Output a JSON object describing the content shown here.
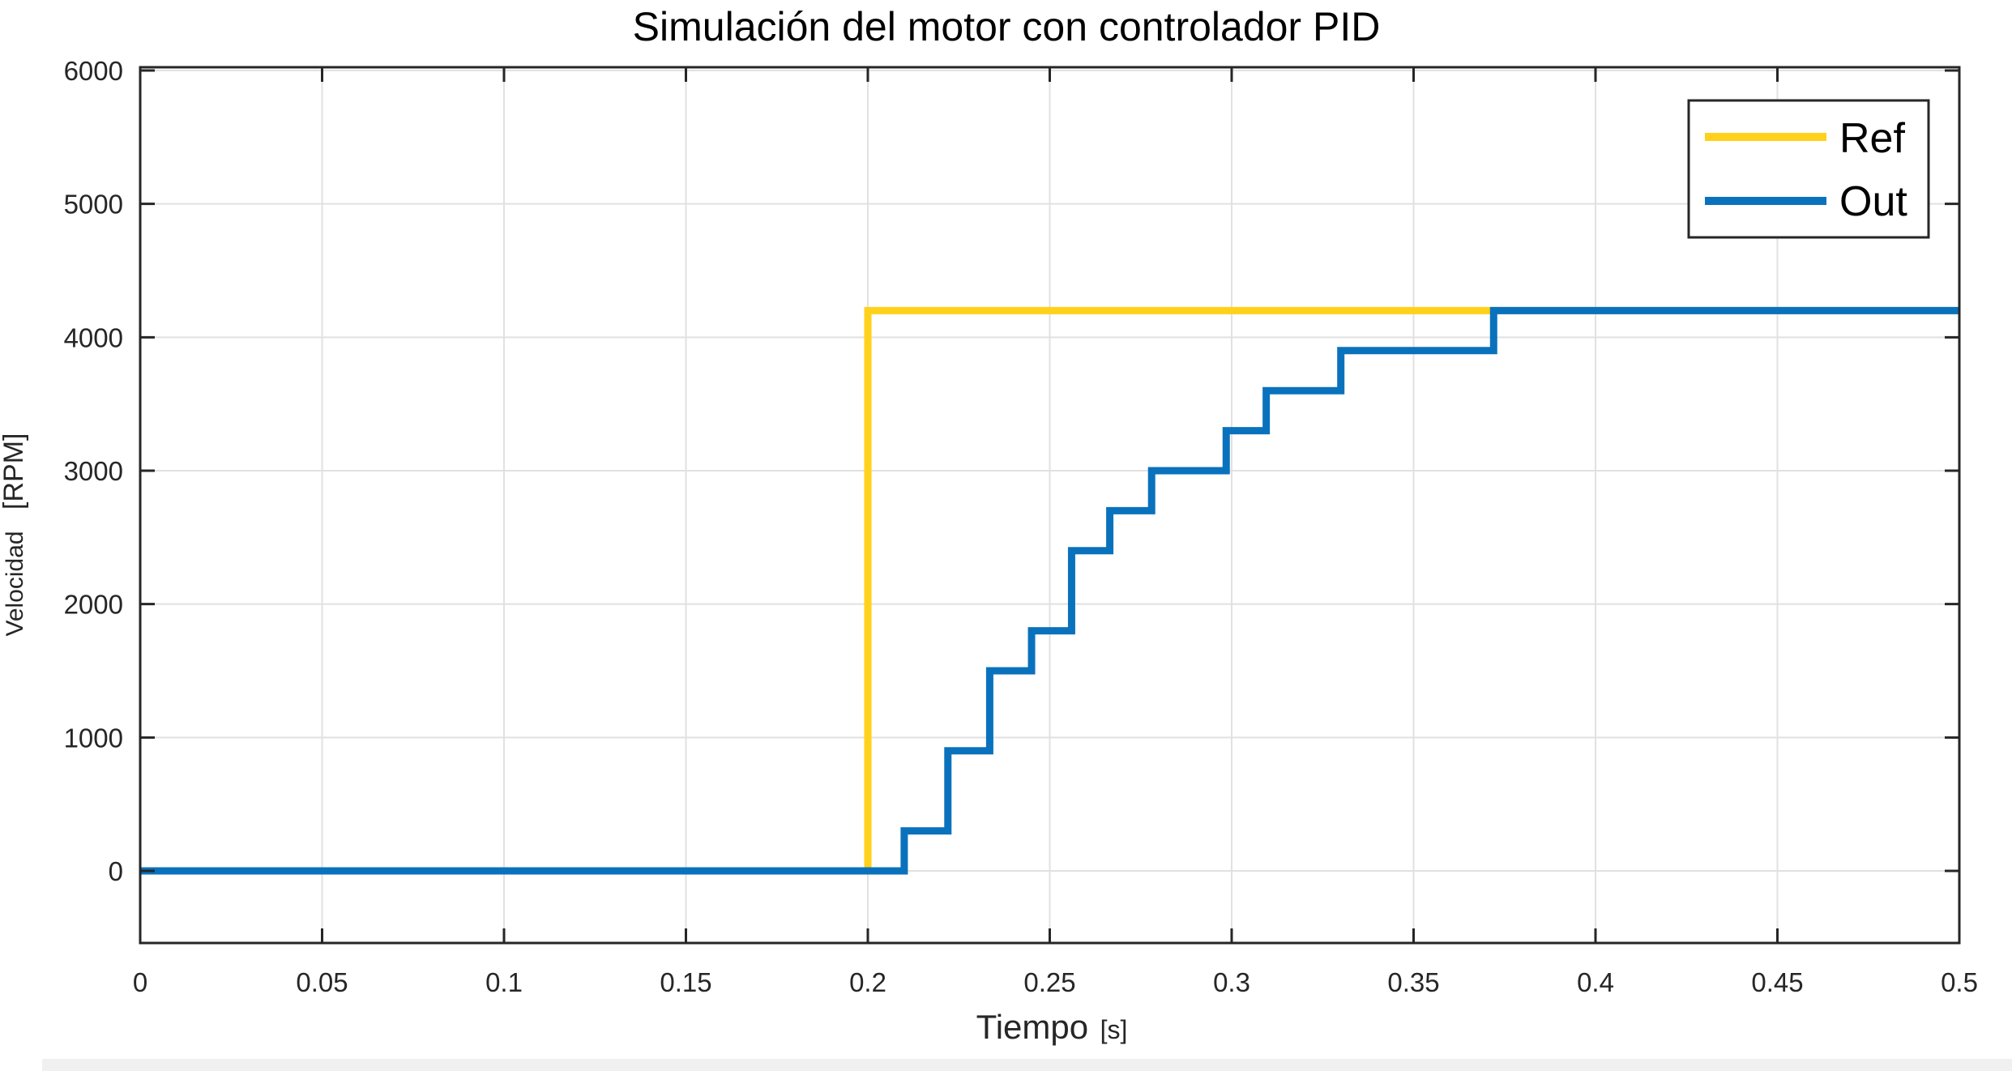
{
  "chart_data": {
    "type": "line",
    "title": "Simulación del motor con controlador PID",
    "xlabel": {
      "main": "Tiempo",
      "unit": "[s]"
    },
    "ylabel": {
      "main": "Velocidad",
      "unit": "[RPM]"
    },
    "xlim": [
      0,
      0.5
    ],
    "ylim": [
      -550,
      6000
    ],
    "xticks": [
      0,
      0.05,
      0.1,
      0.15,
      0.2,
      0.25,
      0.3,
      0.35,
      0.4,
      0.45,
      0.5
    ],
    "xtick_labels": [
      "0",
      "0.05",
      "0.1",
      "0.15",
      "0.2",
      "0.25",
      "0.3",
      "0.35",
      "0.4",
      "0.45",
      "0.5"
    ],
    "yticks": [
      0,
      1000,
      2000,
      3000,
      4000,
      5000,
      6000
    ],
    "ytick_labels": [
      "0",
      "1000",
      "2000",
      "3000",
      "4000",
      "5000",
      "6000"
    ],
    "grid": true,
    "legend_position": "top-right",
    "series": [
      {
        "name": "Ref",
        "color": "#FFD11A",
        "step": true,
        "x": [
          0,
          0.2,
          0.2,
          0.5
        ],
        "y": [
          0,
          0,
          4200,
          4200
        ]
      },
      {
        "name": "Out",
        "color": "#0A72BD",
        "step": true,
        "x": [
          0,
          0.21,
          0.222,
          0.2335,
          0.245,
          0.256,
          0.2665,
          0.278,
          0.2985,
          0.3095,
          0.33,
          0.372,
          0.5
        ],
        "y": [
          0,
          300,
          900,
          1500,
          1800,
          2400,
          2700,
          3000,
          3300,
          3600,
          3900,
          4200,
          4200
        ]
      }
    ]
  }
}
